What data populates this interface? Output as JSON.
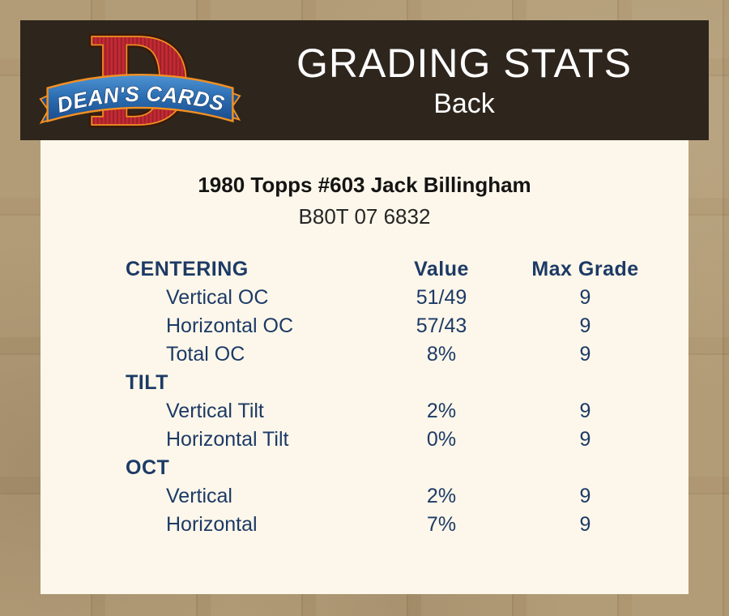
{
  "header": {
    "logo": {
      "brand": "DEAN'S CARDS",
      "monogram": "D"
    },
    "title": "GRADING STATS",
    "subtitle": "Back"
  },
  "card": {
    "name": "1980 Topps #603 Jack Billingham",
    "serial": "B80T 07 6832"
  },
  "stats_table": {
    "rows": [
      {
        "type": "header",
        "label": "CENTERING",
        "value": "Value",
        "grade": "Max Grade"
      },
      {
        "type": "data",
        "label": "Vertical OC",
        "value": "51/49",
        "grade": "9"
      },
      {
        "type": "data",
        "label": "Horizontal OC",
        "value": "57/43",
        "grade": "9"
      },
      {
        "type": "data",
        "label": "Total OC",
        "value": "8%",
        "grade": "9"
      },
      {
        "type": "section",
        "label": "TILT",
        "value": "",
        "grade": ""
      },
      {
        "type": "data",
        "label": "Vertical Tilt",
        "value": "2%",
        "grade": "9"
      },
      {
        "type": "data",
        "label": "Horizontal Tilt",
        "value": "0%",
        "grade": "9"
      },
      {
        "type": "section",
        "label": "OCT",
        "value": "",
        "grade": ""
      },
      {
        "type": "data",
        "label": "Vertical",
        "value": "2%",
        "grade": "9"
      },
      {
        "type": "data",
        "label": "Horizontal",
        "value": "7%",
        "grade": "9"
      }
    ]
  },
  "colors": {
    "page_bg": "#a8906a",
    "header_bg": "#2e261d",
    "panel_bg": "#fcf7ea",
    "accent_navy": "#1d3a66",
    "logo_red": "#c22a33",
    "logo_orange": "#f29022",
    "logo_blue": "#2a6cb0",
    "title_white": "#ffffff"
  }
}
